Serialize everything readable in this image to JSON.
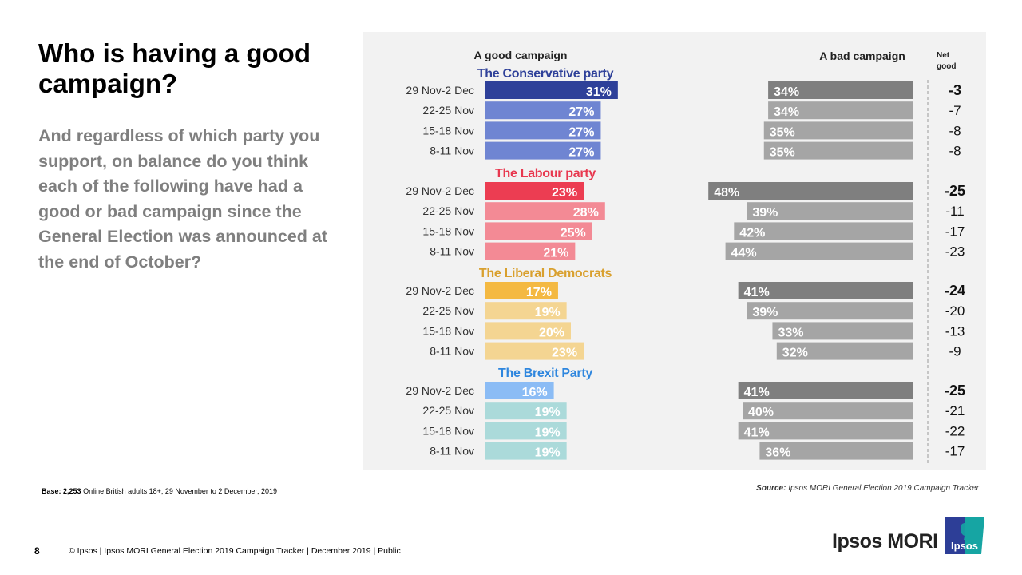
{
  "title": "Who is having a good campaign?",
  "question": "And regardless of which party you support, on balance do you think each of the following have had a good or bad campaign since the General Election was announced at the end of October?",
  "base": {
    "label": "Base:",
    "count": "2,253",
    "text": "Online British adults 18+,  29 November to 2 December, 2019"
  },
  "source": {
    "label": "Source:",
    "text": "Ipsos MORI General Election 2019 Campaign Tracker"
  },
  "footer": {
    "page_number": "8",
    "text": "© Ipsos | Ipsos MORI  General Election  2019 Campaign  Tracker | December 2019 | Public"
  },
  "brand": {
    "name": "Ipsos MORI",
    "logo_text": "Ipsos",
    "logo_colors": [
      "#2d3e97",
      "#16a5a3"
    ]
  },
  "chart_data": {
    "type": "bar",
    "subtype": "diverging-horizontal-grouped",
    "headers": {
      "good": "A good campaign",
      "bad": "A bad campaign",
      "net": "Net good"
    },
    "unit": "%",
    "categories": [
      "29 Nov-2 Dec",
      "22-25 Nov",
      "15-18 Nov",
      "8-11 Nov"
    ],
    "groups": [
      {
        "name": "The Conservative party",
        "color": "#2e4099",
        "latest_color": "#2e4099",
        "past_color": "#6f85d2",
        "good": [
          31,
          27,
          27,
          27
        ],
        "bad": [
          34,
          34,
          35,
          35
        ],
        "net": [
          -3,
          -7,
          -8,
          -8
        ]
      },
      {
        "name": "The Labour party",
        "color": "#e8384f",
        "latest_color": "#ec3d52",
        "past_color": "#f38a95",
        "good": [
          23,
          28,
          25,
          21
        ],
        "bad": [
          48,
          39,
          42,
          44
        ],
        "net": [
          -25,
          -11,
          -17,
          -23
        ]
      },
      {
        "name": "The Liberal Democrats",
        "color": "#d9a02e",
        "latest_color": "#f4b942",
        "past_color": "#f4d592",
        "good": [
          17,
          19,
          20,
          23
        ],
        "bad": [
          41,
          39,
          33,
          32
        ],
        "net": [
          -24,
          -20,
          -13,
          -9
        ]
      },
      {
        "name": "The Brexit Party",
        "color": "#2e86de",
        "latest_color": "#8bbcf5",
        "past_color": "#abdada",
        "good": [
          16,
          19,
          19,
          19
        ],
        "bad": [
          41,
          40,
          41,
          36
        ],
        "net": [
          -25,
          -21,
          -22,
          -17
        ]
      }
    ],
    "bad_colors": {
      "latest": "#7f7f7f",
      "past": "#a5a5a5"
    }
  }
}
